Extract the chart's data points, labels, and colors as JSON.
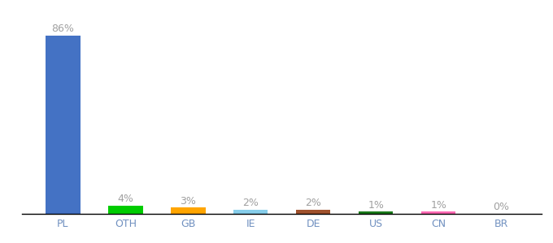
{
  "categories": [
    "PL",
    "OTH",
    "GB",
    "IE",
    "DE",
    "US",
    "CN",
    "BR"
  ],
  "values": [
    86,
    4,
    3,
    2,
    2,
    1,
    1,
    0
  ],
  "labels": [
    "86%",
    "4%",
    "3%",
    "2%",
    "2%",
    "1%",
    "1%",
    "0%"
  ],
  "colors": [
    "#4472C4",
    "#00CC00",
    "#FFA500",
    "#87CEEB",
    "#A0522D",
    "#1A7A1A",
    "#FF69B4",
    "#CCCCCC"
  ],
  "background_color": "#FFFFFF",
  "bar_width": 0.55,
  "ylim": [
    0,
    95
  ],
  "label_color": "#A0A0A0",
  "tick_color": "#7090C0",
  "label_fontsize": 9,
  "tick_fontsize": 9
}
